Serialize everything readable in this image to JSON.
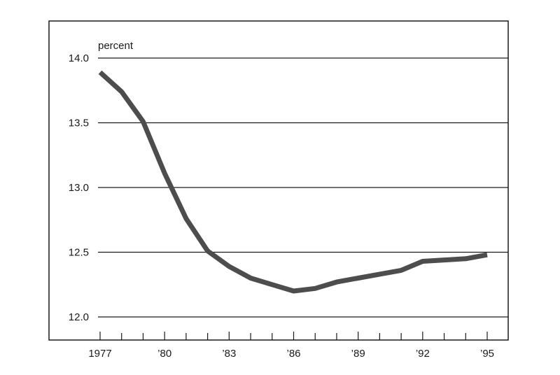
{
  "chart_data": {
    "type": "line",
    "ylabel": "percent",
    "xlabel": "",
    "title": "",
    "xlim": [
      1977,
      1995
    ],
    "ylim": [
      12.0,
      14.0
    ],
    "yticks": [
      {
        "value": 12.0,
        "label": "12.0"
      },
      {
        "value": 12.5,
        "label": "12.5"
      },
      {
        "value": 13.0,
        "label": "13.0"
      },
      {
        "value": 13.5,
        "label": "13.5"
      },
      {
        "value": 14.0,
        "label": "14.0"
      }
    ],
    "xticks": [
      {
        "value": 1977,
        "label": "1977"
      },
      {
        "value": 1980,
        "label": "’80"
      },
      {
        "value": 1983,
        "label": "’83"
      },
      {
        "value": 1986,
        "label": "’86"
      },
      {
        "value": 1989,
        "label": "’89"
      },
      {
        "value": 1992,
        "label": "’92"
      },
      {
        "value": 1995,
        "label": "’95"
      }
    ],
    "grid": "horizontal",
    "series": [
      {
        "x": [
          1977,
          1978,
          1979,
          1980,
          1981,
          1982,
          1983,
          1984,
          1985,
          1986,
          1987,
          1988,
          1989,
          1990,
          1991,
          1992,
          1993,
          1994,
          1995
        ],
        "values": [
          13.89,
          13.74,
          13.51,
          13.11,
          12.76,
          12.51,
          12.39,
          12.3,
          12.25,
          12.2,
          12.22,
          12.27,
          12.3,
          12.33,
          12.36,
          12.43,
          12.44,
          12.45,
          12.48
        ],
        "color": "#4d4d4d"
      }
    ]
  }
}
